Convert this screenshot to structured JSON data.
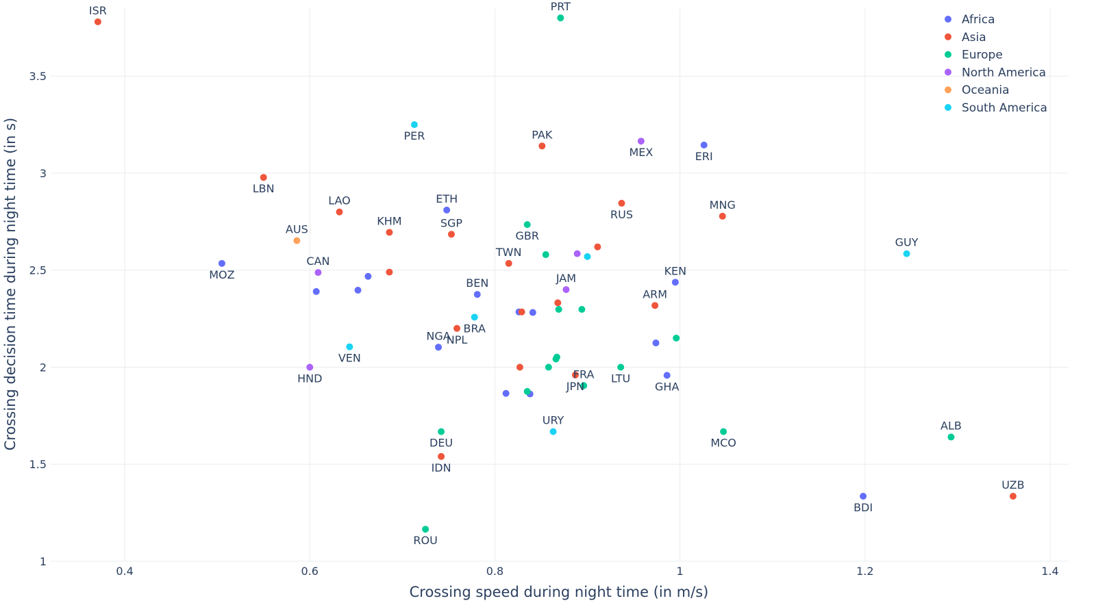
{
  "chart_data": {
    "type": "scatter",
    "xlabel": "Crossing speed during night time (in m/s)",
    "ylabel": "Crossing decision time during night time (in s)",
    "xlim": [
      0.32,
      1.42
    ],
    "ylim": [
      1.0,
      3.85
    ],
    "x_ticks": [
      0.4,
      0.6,
      0.8,
      1,
      1.2,
      1.4
    ],
    "x_tick_labels": [
      "0.4",
      "0.6",
      "0.8",
      "1",
      "1.2",
      "1.4"
    ],
    "y_ticks": [
      1,
      1.5,
      2,
      2.5,
      3,
      3.5
    ],
    "y_tick_labels": [
      "1",
      "1.5",
      "2",
      "2.5",
      "3",
      "3.5"
    ],
    "grid": true,
    "legend_position": "top-right",
    "series": [
      {
        "name": "Africa",
        "color": "#636efa",
        "points": [
          {
            "x": 0.505,
            "y": 2.535,
            "label": "MOZ",
            "label_pos": "below"
          },
          {
            "x": 0.607,
            "y": 2.39,
            "label": ""
          },
          {
            "x": 0.652,
            "y": 2.397,
            "label": ""
          },
          {
            "x": 0.663,
            "y": 2.468,
            "label": ""
          },
          {
            "x": 0.748,
            "y": 2.81,
            "label": "ETH",
            "label_pos": "above"
          },
          {
            "x": 0.739,
            "y": 2.103,
            "label": "NGA",
            "label_pos": "above"
          },
          {
            "x": 0.781,
            "y": 2.375,
            "label": "BEN",
            "label_pos": "above"
          },
          {
            "x": 0.826,
            "y": 2.285,
            "label": ""
          },
          {
            "x": 0.841,
            "y": 2.282,
            "label": ""
          },
          {
            "x": 0.812,
            "y": 1.865,
            "label": ""
          },
          {
            "x": 0.838,
            "y": 1.862,
            "label": ""
          },
          {
            "x": 0.974,
            "y": 2.125,
            "label": ""
          },
          {
            "x": 0.995,
            "y": 2.438,
            "label": "KEN",
            "label_pos": "above"
          },
          {
            "x": 0.986,
            "y": 1.958,
            "label": "GHA",
            "label_pos": "below"
          },
          {
            "x": 1.026,
            "y": 3.145,
            "label": "ERI",
            "label_pos": "below"
          },
          {
            "x": 1.198,
            "y": 1.335,
            "label": "BDI",
            "label_pos": "below"
          }
        ]
      },
      {
        "name": "Asia",
        "color": "#ef553b",
        "points": [
          {
            "x": 0.371,
            "y": 3.78,
            "label": "ISR",
            "label_pos": "above"
          },
          {
            "x": 0.55,
            "y": 2.978,
            "label": "LBN",
            "label_pos": "below"
          },
          {
            "x": 0.632,
            "y": 2.8,
            "label": "LAO",
            "label_pos": "above"
          },
          {
            "x": 0.686,
            "y": 2.695,
            "label": "KHM",
            "label_pos": "above"
          },
          {
            "x": 0.686,
            "y": 2.49,
            "label": ""
          },
          {
            "x": 0.753,
            "y": 2.685,
            "label": "SGP",
            "label_pos": "above"
          },
          {
            "x": 0.759,
            "y": 2.2,
            "label": "NPL",
            "label_pos": "below"
          },
          {
            "x": 0.815,
            "y": 2.535,
            "label": "TWN",
            "label_pos": "above"
          },
          {
            "x": 0.829,
            "y": 2.285,
            "label": ""
          },
          {
            "x": 0.827,
            "y": 2.0,
            "label": ""
          },
          {
            "x": 0.851,
            "y": 3.14,
            "label": "PAK",
            "label_pos": "above"
          },
          {
            "x": 0.868,
            "y": 2.332,
            "label": ""
          },
          {
            "x": 0.887,
            "y": 1.96,
            "label": "JPN",
            "label_pos": "below"
          },
          {
            "x": 0.911,
            "y": 2.62,
            "label": ""
          },
          {
            "x": 0.937,
            "y": 2.845,
            "label": "RUS",
            "label_pos": "below"
          },
          {
            "x": 0.973,
            "y": 2.318,
            "label": "ARM",
            "label_pos": "above"
          },
          {
            "x": 0.742,
            "y": 1.54,
            "label": "IDN",
            "label_pos": "below"
          },
          {
            "x": 1.046,
            "y": 2.778,
            "label": "MNG",
            "label_pos": "above"
          },
          {
            "x": 1.36,
            "y": 1.335,
            "label": "UZB",
            "label_pos": "above"
          }
        ]
      },
      {
        "name": "Europe",
        "color": "#00cc96",
        "points": [
          {
            "x": 0.871,
            "y": 3.8,
            "label": "PRT",
            "label_pos": "above"
          },
          {
            "x": 0.835,
            "y": 2.735,
            "label": "GBR",
            "label_pos": "below"
          },
          {
            "x": 0.855,
            "y": 2.58,
            "label": ""
          },
          {
            "x": 0.869,
            "y": 2.298,
            "label": ""
          },
          {
            "x": 0.894,
            "y": 2.298,
            "label": ""
          },
          {
            "x": 0.858,
            "y": 2.0,
            "label": ""
          },
          {
            "x": 0.866,
            "y": 2.042,
            "label": ""
          },
          {
            "x": 0.867,
            "y": 2.052,
            "label": ""
          },
          {
            "x": 0.835,
            "y": 1.875,
            "label": ""
          },
          {
            "x": 0.896,
            "y": 1.905,
            "label": "FRA",
            "label_pos": "above"
          },
          {
            "x": 0.936,
            "y": 2.0,
            "label": "LTU",
            "label_pos": "below"
          },
          {
            "x": 0.996,
            "y": 2.15,
            "label": ""
          },
          {
            "x": 0.742,
            "y": 1.668,
            "label": "DEU",
            "label_pos": "below"
          },
          {
            "x": 0.725,
            "y": 1.165,
            "label": "ROU",
            "label_pos": "below"
          },
          {
            "x": 1.047,
            "y": 1.668,
            "label": "MCO",
            "label_pos": "below"
          },
          {
            "x": 1.293,
            "y": 1.64,
            "label": "ALB",
            "label_pos": "above"
          }
        ]
      },
      {
        "name": "North America",
        "color": "#ab63fa",
        "points": [
          {
            "x": 0.609,
            "y": 2.488,
            "label": "CAN",
            "label_pos": "above"
          },
          {
            "x": 0.6,
            "y": 2.0,
            "label": "HND",
            "label_pos": "below"
          },
          {
            "x": 0.889,
            "y": 2.585,
            "label": ""
          },
          {
            "x": 0.877,
            "y": 2.4,
            "label": "JAM",
            "label_pos": "above"
          },
          {
            "x": 0.958,
            "y": 3.165,
            "label": "MEX",
            "label_pos": "below"
          }
        ]
      },
      {
        "name": "Oceania",
        "color": "#ffa15a",
        "points": [
          {
            "x": 0.586,
            "y": 2.652,
            "label": "AUS",
            "label_pos": "above"
          }
        ]
      },
      {
        "name": "South America",
        "color": "#19d3f3",
        "points": [
          {
            "x": 0.713,
            "y": 3.25,
            "label": "PER",
            "label_pos": "below"
          },
          {
            "x": 0.643,
            "y": 2.105,
            "label": "VEN",
            "label_pos": "below"
          },
          {
            "x": 0.778,
            "y": 2.258,
            "label": "BRA",
            "label_pos": "below"
          },
          {
            "x": 0.9,
            "y": 2.57,
            "label": ""
          },
          {
            "x": 0.863,
            "y": 1.668,
            "label": "URY",
            "label_pos": "above"
          },
          {
            "x": 1.245,
            "y": 2.585,
            "label": "GUY",
            "label_pos": "above"
          }
        ]
      }
    ]
  }
}
